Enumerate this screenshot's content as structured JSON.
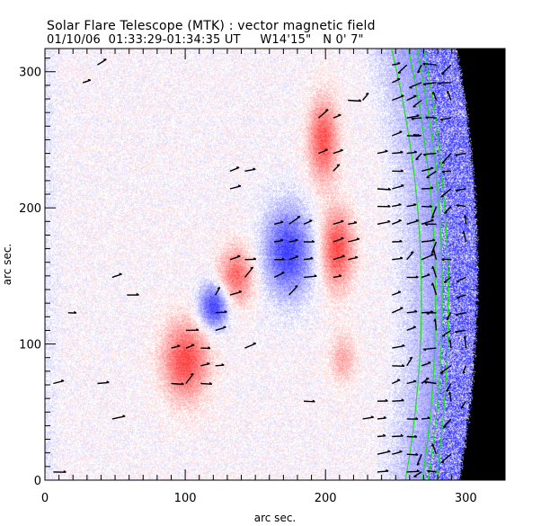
{
  "header": {
    "title": "Solar Flare Telescope (MTK) : vector magnetic field",
    "subtitle": "01/10/06  01:33:29-01:34:35 UT     W14'15\"   N 0' 7\""
  },
  "chart_data": {
    "type": "heatmap",
    "title": "Solar Flare Telescope (MTK) : vector magnetic field",
    "subtitle": "01/10/06  01:33:29-01:34:35 UT     W14'15\"   N 0' 7\"",
    "xlabel": "arc sec.",
    "ylabel": "arc sec.",
    "xlim": [
      0,
      328
    ],
    "ylim": [
      0,
      317
    ],
    "xticks": [
      0,
      100,
      200,
      300
    ],
    "xtick_labels": [
      "0",
      "100",
      "200",
      "300"
    ],
    "yticks": [
      0,
      100,
      200,
      300
    ],
    "ytick_labels": [
      "0",
      "100",
      "200",
      "300"
    ],
    "x_minor_step": 10,
    "y_minor_step": 10,
    "colors": {
      "positive": "#ff3b3b",
      "negative": "#3b3bff",
      "contour": "#22dd22",
      "vector": "#000000",
      "off_disk": "#000000"
    },
    "polarity_regions": [
      {
        "name": "small-negative-spot",
        "polarity": "negative",
        "x": 120,
        "y": 128,
        "rx": 11,
        "ry": 17,
        "strength": 1.0
      },
      {
        "name": "large-negative-region",
        "polarity": "negative",
        "x": 173,
        "y": 168,
        "rx": 18,
        "ry": 34,
        "strength": 0.95
      },
      {
        "name": "positive-east-of-large",
        "polarity": "positive",
        "x": 208,
        "y": 170,
        "rx": 12,
        "ry": 30,
        "strength": 0.9
      },
      {
        "name": "positive-north",
        "polarity": "positive",
        "x": 198,
        "y": 250,
        "rx": 11,
        "ry": 32,
        "strength": 0.85
      },
      {
        "name": "positive-between",
        "polarity": "positive",
        "x": 136,
        "y": 150,
        "rx": 13,
        "ry": 22,
        "strength": 0.75
      },
      {
        "name": "positive-southwest",
        "polarity": "positive",
        "x": 100,
        "y": 88,
        "rx": 17,
        "ry": 30,
        "strength": 0.9
      },
      {
        "name": "positive-south-weak",
        "polarity": "positive",
        "x": 212,
        "y": 90,
        "rx": 10,
        "ry": 20,
        "strength": 0.4
      }
    ],
    "limb_contours": [
      {
        "name": "contour-1",
        "x_top": 247,
        "x_mid": 268,
        "x_bottom": 257
      },
      {
        "name": "contour-2",
        "x_top": 259,
        "x_mid": 278,
        "x_bottom": 269
      },
      {
        "name": "contour-3",
        "x_top": 265,
        "x_mid": 283,
        "x_bottom": 273
      },
      {
        "name": "contour-4",
        "x_top": 270,
        "x_mid": 287,
        "x_bottom": 279
      }
    ],
    "limb_edge": {
      "x_top": 293,
      "x_mid": 308,
      "x_bottom": 295
    }
  }
}
